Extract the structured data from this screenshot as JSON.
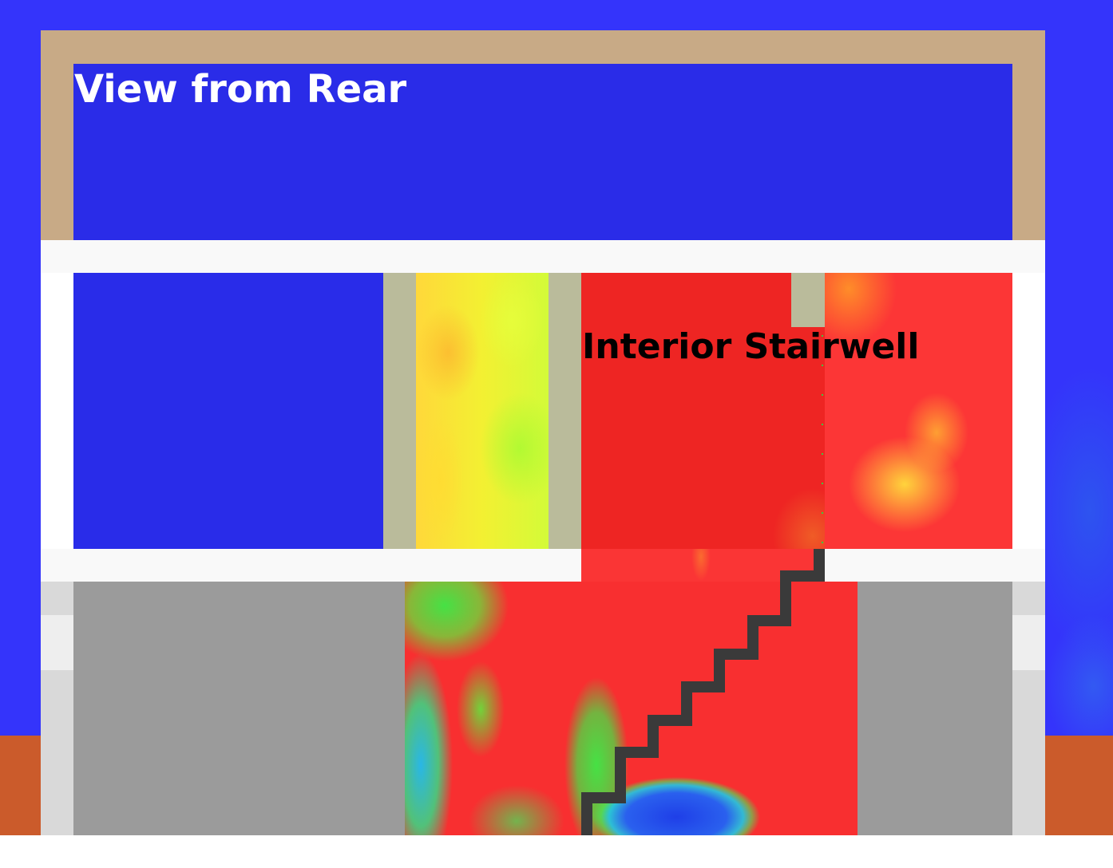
{
  "title": "View from Rear",
  "zone_label": "Interior Stairwell",
  "colors": {
    "sky": "#3434fb",
    "ground": "#cb5b2b",
    "attic_frame": "#c8aa86",
    "attic_interior": "#2a2ce8",
    "floor_slab": "#f9f9f9",
    "partition_wall": "#babb9b",
    "cold_room": "#292ce9",
    "hot_zone": "#f82f30",
    "unheated_room": "#9b9b9b",
    "stair_outline": "#3a3a3a"
  }
}
